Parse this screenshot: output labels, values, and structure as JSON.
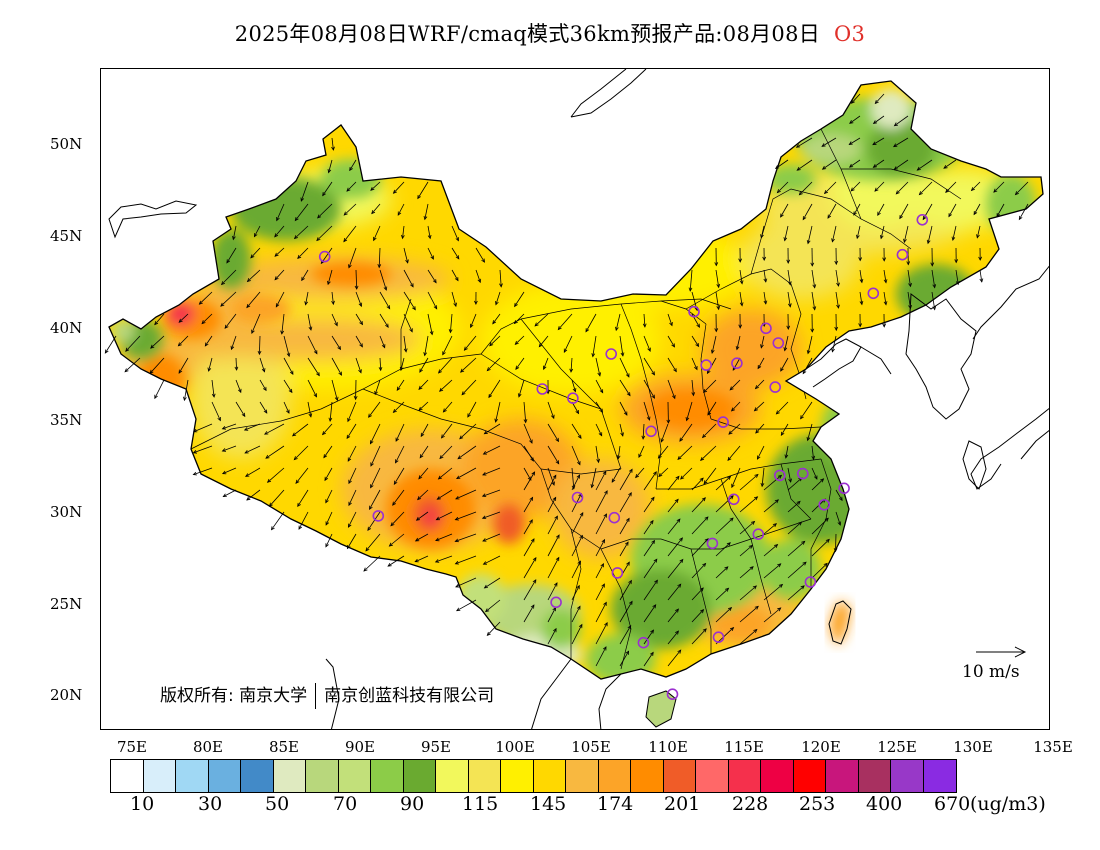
{
  "title": {
    "main": "2025年08月08日WRF/cmaq模式36km预报产品:08月08日",
    "species": "O3"
  },
  "colors": {
    "species_label": "#e0302a"
  },
  "map": {
    "lat_labels": [
      "50N",
      "45N",
      "40N",
      "35N",
      "30N",
      "25N",
      "20N"
    ],
    "lon_labels": [
      "75E",
      "80E",
      "85E",
      "90E",
      "95E",
      "100E",
      "105E",
      "110E",
      "115E",
      "120E",
      "125E",
      "130E",
      "135E"
    ],
    "copyright": {
      "prefix": "版权所有:",
      "org1": "南京大学",
      "org2": "南京创蓝科技有限公司"
    },
    "wind_reference": "10 m/s",
    "station_marker_color": "#9b30d0",
    "station_markers": [
      [
        87.6,
        43.8
      ],
      [
        91.1,
        29.7
      ],
      [
        101.8,
        36.6
      ],
      [
        103.8,
        36.1
      ],
      [
        106.3,
        38.5
      ],
      [
        104.1,
        30.7
      ],
      [
        106.5,
        29.6
      ],
      [
        106.7,
        26.6
      ],
      [
        102.7,
        25.0
      ],
      [
        108.4,
        22.8
      ],
      [
        110.3,
        20.0
      ],
      [
        108.9,
        34.3
      ],
      [
        111.7,
        40.8
      ],
      [
        112.5,
        37.9
      ],
      [
        114.5,
        38.0
      ],
      [
        116.4,
        39.9
      ],
      [
        117.2,
        39.1
      ],
      [
        117.0,
        36.7
      ],
      [
        113.6,
        34.8
      ],
      [
        114.3,
        30.6
      ],
      [
        112.9,
        28.2
      ],
      [
        115.9,
        28.7
      ],
      [
        117.3,
        31.9
      ],
      [
        118.8,
        32.0
      ],
      [
        120.2,
        30.3
      ],
      [
        121.5,
        31.2
      ],
      [
        119.3,
        26.1
      ],
      [
        113.3,
        23.1
      ],
      [
        123.4,
        41.8
      ],
      [
        125.3,
        43.9
      ],
      [
        126.6,
        45.8
      ]
    ]
  },
  "colorbar": {
    "colors": [
      "#ffffff",
      "#d8eefa",
      "#a0d8f4",
      "#6ab0e0",
      "#428ac8",
      "#dfeac0",
      "#b8d77c",
      "#c2e07a",
      "#8ccc48",
      "#6aaa30",
      "#f2f85c",
      "#f4e454",
      "#fff000",
      "#ffd800",
      "#f8b840",
      "#fca428",
      "#ff8c00",
      "#f05c28",
      "#ff6868",
      "#f5304c",
      "#ee0044",
      "#ff0000",
      "#c8167c",
      "#a83060",
      "#9838c8",
      "#8a2be2"
    ],
    "labels": [
      "10",
      "30",
      "50",
      "70",
      "90",
      "115",
      "145",
      "174",
      "201",
      "228",
      "253",
      "400",
      "670"
    ],
    "unit": "(ug/m3)"
  }
}
